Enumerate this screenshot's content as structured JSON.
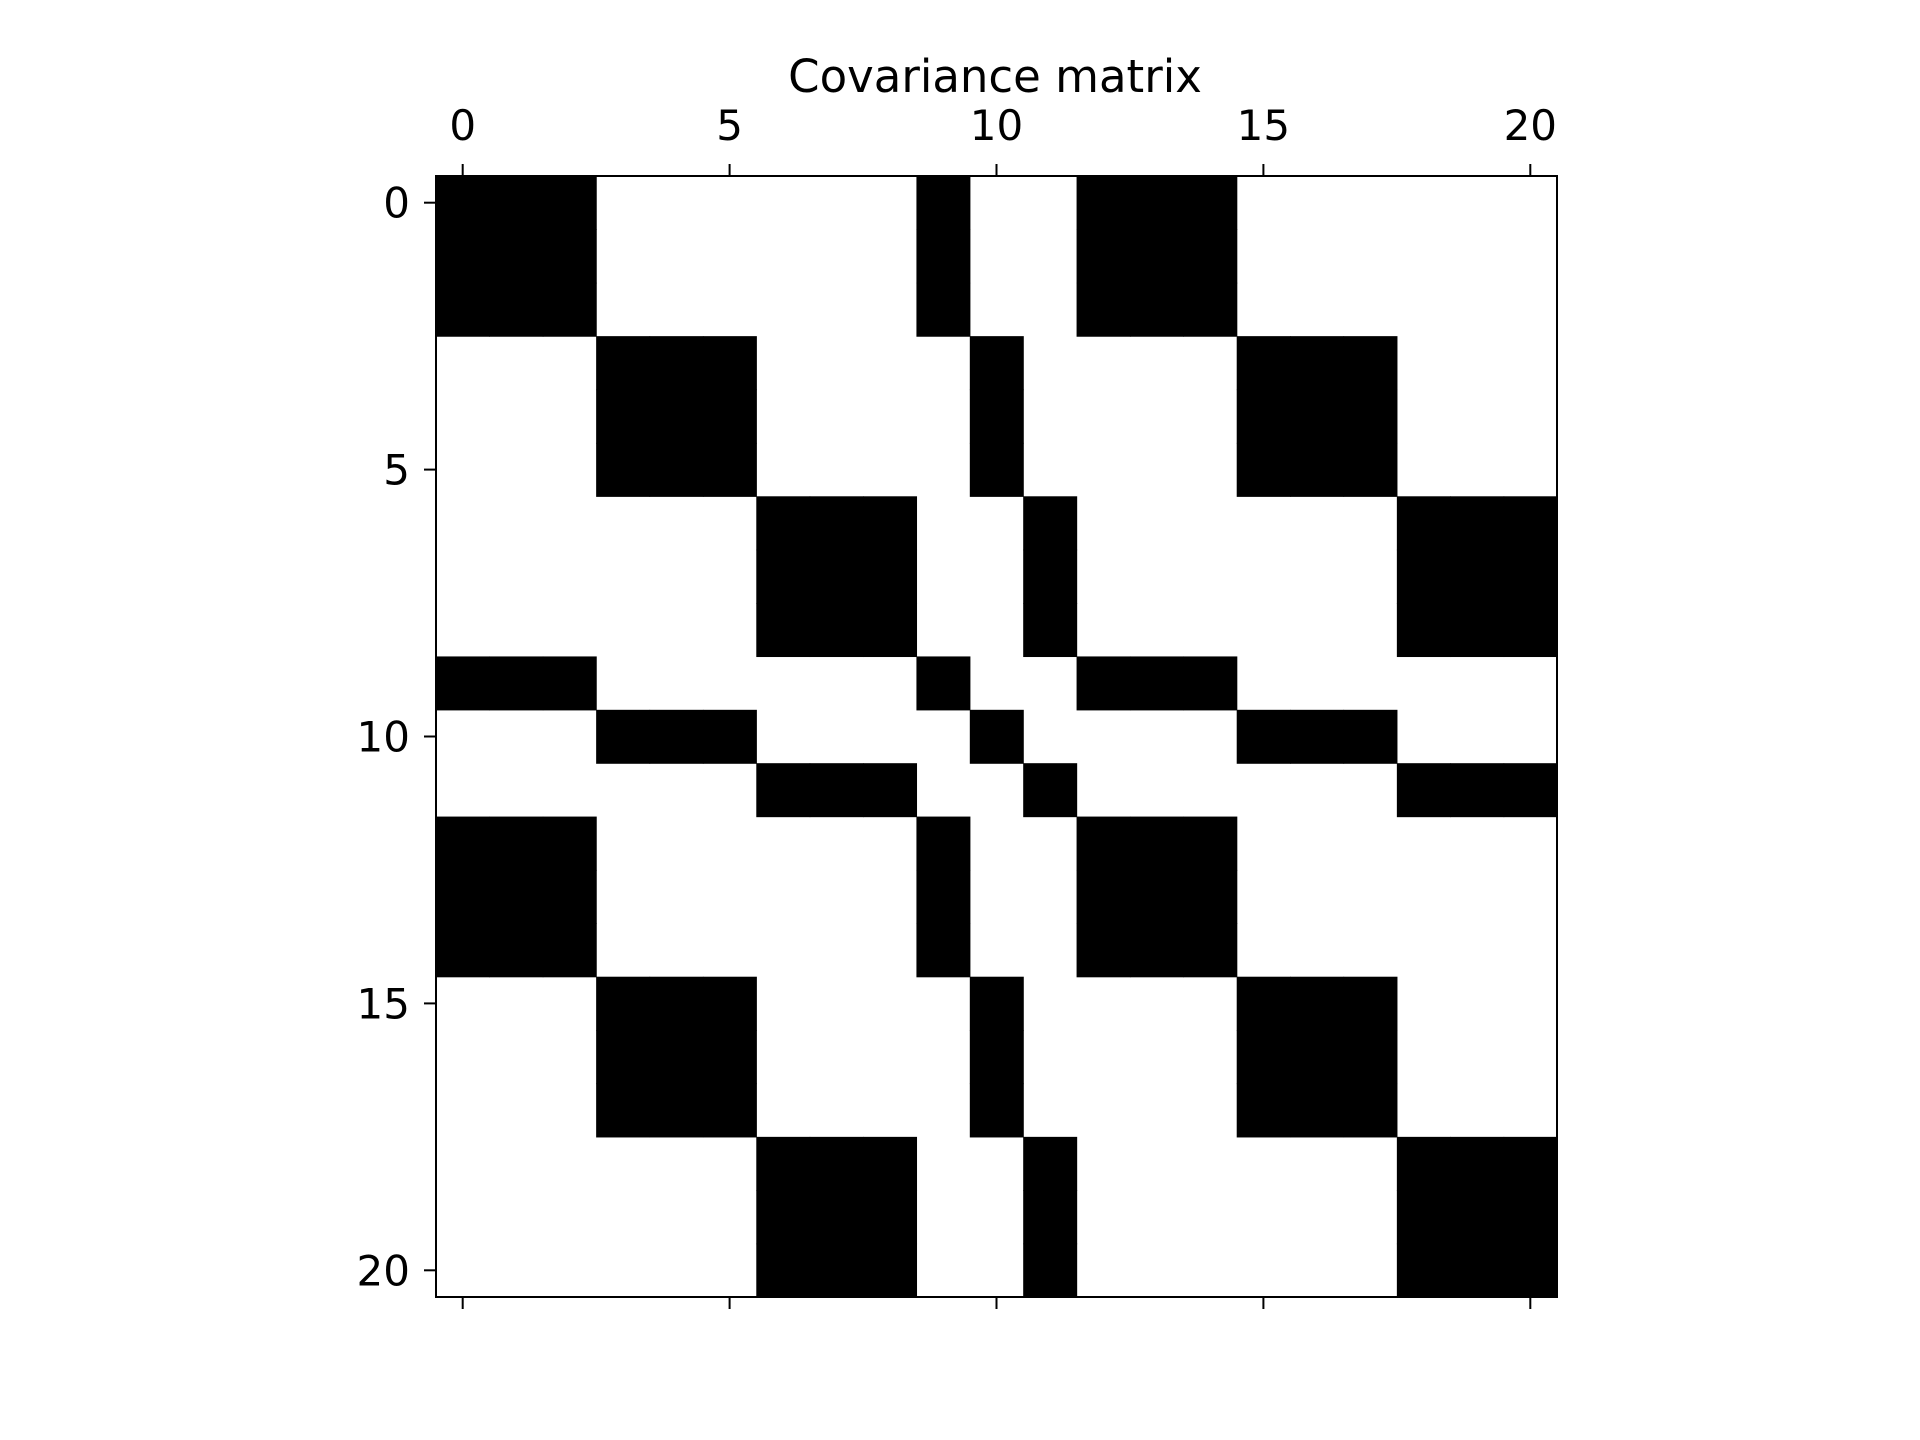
{
  "chart_data": {
    "type": "heatmap",
    "title": "Covariance matrix",
    "colormap": "binary",
    "colors": {
      "filled": "#000000",
      "empty": "#ffffff",
      "axes": "#000000"
    },
    "rows": 21,
    "cols": 21,
    "xlim": [
      -0.5,
      20.5
    ],
    "ylim": [
      -0.5,
      20.5
    ],
    "x_ticks": [
      0,
      5,
      10,
      15,
      20
    ],
    "y_ticks": [
      0,
      5,
      10,
      15,
      20
    ],
    "x_tick_labels": [
      "0",
      "5",
      "10",
      "15",
      "20"
    ],
    "y_tick_labels": [
      "0",
      "5",
      "10",
      "15",
      "20"
    ],
    "x_axis_position": "top",
    "y_axis_inverted": true,
    "grid": false,
    "matrix": [
      [
        1,
        1,
        1,
        0,
        0,
        0,
        0,
        0,
        0,
        1,
        0,
        0,
        1,
        1,
        1,
        0,
        0,
        0,
        0,
        0,
        0
      ],
      [
        1,
        1,
        1,
        0,
        0,
        0,
        0,
        0,
        0,
        1,
        0,
        0,
        1,
        1,
        1,
        0,
        0,
        0,
        0,
        0,
        0
      ],
      [
        1,
        1,
        1,
        0,
        0,
        0,
        0,
        0,
        0,
        1,
        0,
        0,
        1,
        1,
        1,
        0,
        0,
        0,
        0,
        0,
        0
      ],
      [
        0,
        0,
        0,
        1,
        1,
        1,
        0,
        0,
        0,
        0,
        1,
        0,
        0,
        0,
        0,
        1,
        1,
        1,
        0,
        0,
        0
      ],
      [
        0,
        0,
        0,
        1,
        1,
        1,
        0,
        0,
        0,
        0,
        1,
        0,
        0,
        0,
        0,
        1,
        1,
        1,
        0,
        0,
        0
      ],
      [
        0,
        0,
        0,
        1,
        1,
        1,
        0,
        0,
        0,
        0,
        1,
        0,
        0,
        0,
        0,
        1,
        1,
        1,
        0,
        0,
        0
      ],
      [
        0,
        0,
        0,
        0,
        0,
        0,
        1,
        1,
        1,
        0,
        0,
        1,
        0,
        0,
        0,
        0,
        0,
        0,
        1,
        1,
        1
      ],
      [
        0,
        0,
        0,
        0,
        0,
        0,
        1,
        1,
        1,
        0,
        0,
        1,
        0,
        0,
        0,
        0,
        0,
        0,
        1,
        1,
        1
      ],
      [
        0,
        0,
        0,
        0,
        0,
        0,
        1,
        1,
        1,
        0,
        0,
        1,
        0,
        0,
        0,
        0,
        0,
        0,
        1,
        1,
        1
      ],
      [
        1,
        1,
        1,
        0,
        0,
        0,
        0,
        0,
        0,
        1,
        0,
        0,
        1,
        1,
        1,
        0,
        0,
        0,
        0,
        0,
        0
      ],
      [
        0,
        0,
        0,
        1,
        1,
        1,
        0,
        0,
        0,
        0,
        1,
        0,
        0,
        0,
        0,
        1,
        1,
        1,
        0,
        0,
        0
      ],
      [
        0,
        0,
        0,
        0,
        0,
        0,
        1,
        1,
        1,
        0,
        0,
        1,
        0,
        0,
        0,
        0,
        0,
        0,
        1,
        1,
        1
      ],
      [
        1,
        1,
        1,
        0,
        0,
        0,
        0,
        0,
        0,
        1,
        0,
        0,
        1,
        1,
        1,
        0,
        0,
        0,
        0,
        0,
        0
      ],
      [
        1,
        1,
        1,
        0,
        0,
        0,
        0,
        0,
        0,
        1,
        0,
        0,
        1,
        1,
        1,
        0,
        0,
        0,
        0,
        0,
        0
      ],
      [
        1,
        1,
        1,
        0,
        0,
        0,
        0,
        0,
        0,
        1,
        0,
        0,
        1,
        1,
        1,
        0,
        0,
        0,
        0,
        0,
        0
      ],
      [
        0,
        0,
        0,
        1,
        1,
        1,
        0,
        0,
        0,
        0,
        1,
        0,
        0,
        0,
        0,
        1,
        1,
        1,
        0,
        0,
        0
      ],
      [
        0,
        0,
        0,
        1,
        1,
        1,
        0,
        0,
        0,
        0,
        1,
        0,
        0,
        0,
        0,
        1,
        1,
        1,
        0,
        0,
        0
      ],
      [
        0,
        0,
        0,
        1,
        1,
        1,
        0,
        0,
        0,
        0,
        1,
        0,
        0,
        0,
        0,
        1,
        1,
        1,
        0,
        0,
        0
      ],
      [
        0,
        0,
        0,
        0,
        0,
        0,
        1,
        1,
        1,
        0,
        0,
        1,
        0,
        0,
        0,
        0,
        0,
        0,
        1,
        1,
        1
      ],
      [
        0,
        0,
        0,
        0,
        0,
        0,
        1,
        1,
        1,
        0,
        0,
        1,
        0,
        0,
        0,
        0,
        0,
        0,
        1,
        1,
        1
      ],
      [
        0,
        0,
        0,
        0,
        0,
        0,
        1,
        1,
        1,
        0,
        0,
        1,
        0,
        0,
        0,
        0,
        0,
        0,
        1,
        1,
        1
      ]
    ]
  }
}
